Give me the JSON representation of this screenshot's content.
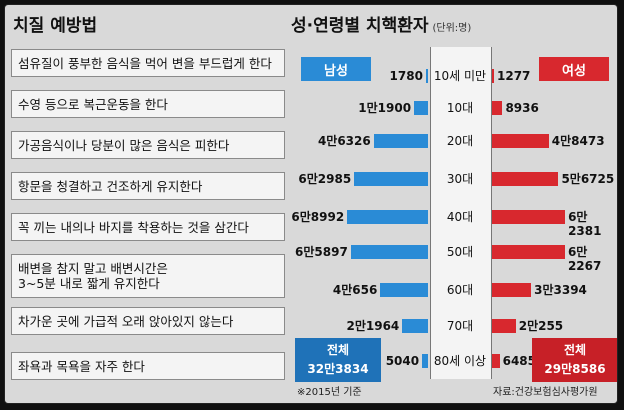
{
  "left_title": "치질 예방법",
  "right_title": "성·연령별 치핵환자",
  "unit_label": "(단위:명)",
  "tips": [
    "섬유질이 풍부한 음식을 먹어 변을 부드럽게 한다",
    "수영 등으로 복근운동을 한다",
    "가공음식이나 당분이 많은 음식은 피한다",
    "항문을 청결하고 건조하게 유지한다",
    "꼭 끼는 내의나 바지를 착용하는 것을 삼간다",
    "배변을 참지 말고 배변시간은\n3~5분 내로 짧게 유지한다",
    "차가운 곳에 가급적 오래 앉아있지 않는다",
    "좌욕과 목욕을 자주 한다"
  ],
  "legend": {
    "male": "남성",
    "female": "여성"
  },
  "totals": {
    "male_label": "전체",
    "male_value": "32만3834",
    "female_label": "전체",
    "female_value": "29만8586"
  },
  "footnote": "※2015년 기준",
  "source": "자료:건강보험심사평가원",
  "colors": {
    "male": "#2a8bd6",
    "female": "#d8282e",
    "total_male": "#1f72b8",
    "total_female": "#c72027"
  },
  "chart_data": {
    "type": "bar",
    "title": "성·연령별 치핵환자",
    "categories": [
      "10세 미만",
      "10대",
      "20대",
      "30대",
      "40대",
      "50대",
      "60대",
      "70대",
      "80세 이상"
    ],
    "series": [
      {
        "name": "남성",
        "values": [
          1780,
          11900,
          46326,
          62985,
          68992,
          65897,
          40656,
          21964,
          5040
        ],
        "labels": [
          "1780",
          "1만1900",
          "4만6326",
          "6만2985",
          "6만8992",
          "6만5897",
          "4만656",
          "2만1964",
          "5040"
        ]
      },
      {
        "name": "여성",
        "values": [
          1277,
          8936,
          48473,
          56725,
          62381,
          62267,
          33394,
          20255,
          6485
        ],
        "labels": [
          "1277",
          "8936",
          "4만8473",
          "5만6725",
          "6만2381",
          "6만2267",
          "3만3394",
          "2만255",
          "6485"
        ]
      }
    ]
  }
}
